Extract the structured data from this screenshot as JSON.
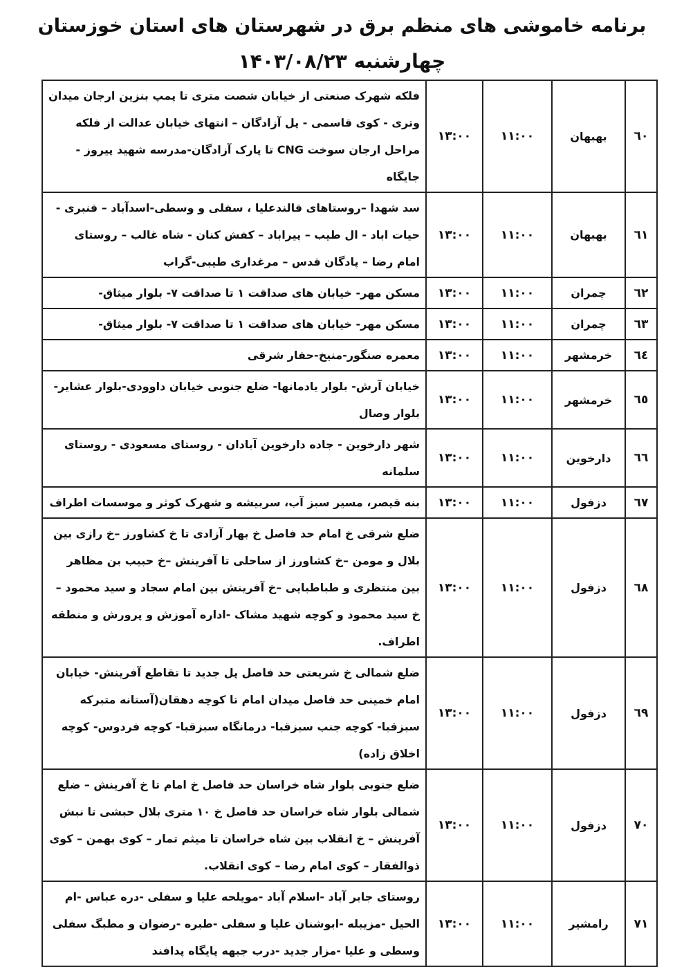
{
  "header": {
    "title": "برنامه خاموشی های منظم برق در شهرستان های استان خوزستان",
    "date_line": "چهارشنبه ۱۴۰۳/۰۸/۲۳"
  },
  "rows": [
    {
      "num": "٦٠",
      "city": "بهبهان",
      "from": "۱۱:۰۰",
      "to": "۱۳:۰۰",
      "areas": "فلکه شهرک صنعتی از خیابان شصت متری تا پمپ بنزین ارجان میدان وتری - کوی قاسمی - پل آزادگان – انتهای خیابان عدالت از فلکه مراحل ارجان سوخت CNG تا پارک آزادگان-مدرسه شهید پیروز - جایگاه"
    },
    {
      "num": "٦١",
      "city": "بهبهان",
      "from": "۱۱:۰۰",
      "to": "۱۳:۰۰",
      "areas": "سد شهدا –روستاهای قالندعلیا ، سفلی و وسطی-اسدآباد – قنبری - حیات اباد - ال طیب – پیراباد – کفش کنان - شاه غالب – روستای امام رضا – پادگان قدس – مرغداری طیبی-گراب"
    },
    {
      "num": "٦٢",
      "city": "چمران",
      "from": "۱۱:۰۰",
      "to": "۱۳:۰۰",
      "areas": "مسکن مهر- خیابان های صداقت ۱ تا صداقت ۷- بلوار میثاق-"
    },
    {
      "num": "٦٣",
      "city": "چمران",
      "from": "۱۱:۰۰",
      "to": "۱۳:۰۰",
      "areas": "مسکن مهر- خیابان های صداقت ۱ تا صداقت ۷- بلوار میثاق-"
    },
    {
      "num": "٦٤",
      "city": "خرمشهر",
      "from": "۱۱:۰۰",
      "to": "۱۳:۰۰",
      "areas": "معمره صنگور-منیخ-حفار شرقی"
    },
    {
      "num": "٦٥",
      "city": "خرمشهر",
      "from": "۱۱:۰۰",
      "to": "۱۳:۰۰",
      "areas": "خیابان آرش- بلوار یادمانها- ضلع جنوبی خیابان داوودی-بلوار عشایر- بلوار وصال"
    },
    {
      "num": "٦٦",
      "city": "دارخوین",
      "from": "۱۱:۰۰",
      "to": "۱۳:۰۰",
      "areas": "شهر دارخوین - جاده دارخوین آبادان - روستای مسعودی - روستای سلمانه"
    },
    {
      "num": "٦٧",
      "city": "دزفول",
      "from": "۱۱:۰۰",
      "to": "۱۳:۰۰",
      "areas": "بنه قیصر، مسیر سبز آب، سربیشه و شهرک کوثر و موسسات اطراف"
    },
    {
      "num": "٦٨",
      "city": "دزفول",
      "from": "۱۱:۰۰",
      "to": "۱۳:۰۰",
      "areas": "ضلع شرقی خ امام حد فاصل خ بهار آزادی تا خ کشاورز –خ رازی بین بلال و مومن –خ کشاورز از ساحلی تا آفرینش –خ حبیب بن مظاهر بین منتظری و طباطبایی –خ آفرینش بین امام سجاد و سید محمود –خ سید محمود و کوچه شهید مشاک -اداره آموزش و پرورش و منطقه اطراف."
    },
    {
      "num": "٦٩",
      "city": "دزفول",
      "from": "۱۱:۰۰",
      "to": "۱۳:۰۰",
      "areas": "ضلع شمالی خ شریعتی حد فاصل پل جدید تا تقاطع آفرینش- خیابان امام خمینی حد فاصل میدان امام تا کوچه دهقان(آستانه متبرکه سبزقبا- کوچه جنب سبزقبا- درمانگاه سبزقبا- کوچه فردوس- کوچه اخلاق زاده)"
    },
    {
      "num": "٧٠",
      "city": "دزفول",
      "from": "۱۱:۰۰",
      "to": "۱۳:۰۰",
      "areas": "ضلع جنوبی بلوار شاه خراسان حد فاصل خ امام تا خ آفرینش – ضلع شمالی بلوار شاه خراسان حد فاصل خ ۱۰ متری بلال حبشی تا نبش آفرینش – خ انقلاب بین شاه خراسان تا میثم تمار – کوی بهمن – کوی ذوالفقار – کوی امام رضا – کوی انقلاب."
    },
    {
      "num": "٧١",
      "city": "رامشیر",
      "from": "۱۱:۰۰",
      "to": "۱۳:۰۰",
      "areas": "روستای جابر آباد -اسلام آباد -مویلحه علیا و سفلی -دره عباس -ام الحیل -مزیبله -ابوشنان علیا و سفلی -طبره -رضوان و مطبگ سفلی وسطی و علیا -مزار جدید -درب جبهه پایگاه پدافند"
    }
  ]
}
